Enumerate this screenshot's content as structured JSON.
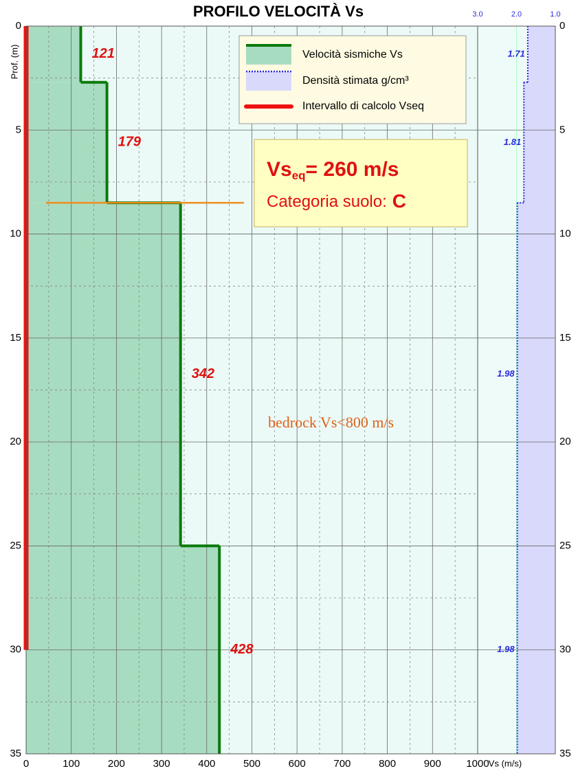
{
  "chart_data": {
    "type": "step-profile",
    "title": "PROFILO VELOCITÀ Vs",
    "y_label": "Prof. (m)",
    "x_label": "Vs (m/s)",
    "depths": [
      0,
      2.7,
      8.5,
      25,
      35
    ],
    "series": [
      {
        "name": "Velocità sismiche Vs",
        "color": "#0b7a0b",
        "fill": "#a8dcc0",
        "values": [
          121,
          179,
          342,
          428
        ]
      },
      {
        "name": "Densità stimata g/cm³",
        "color": "#2a2ae0",
        "fill": "#d9d9fb",
        "axis": "x2",
        "values": [
          1.71,
          1.81,
          1.98,
          1.98
        ]
      }
    ],
    "interval": {
      "name": "Intervallo di calcolo Vseq",
      "color": "#ee1111",
      "range": [
        0,
        30
      ]
    },
    "xlim": [
      0,
      1000
    ],
    "xticks": [
      0,
      100,
      200,
      300,
      400,
      500,
      600,
      700,
      800,
      900,
      1000
    ],
    "x2lim": [
      3.0,
      1.0
    ],
    "x2ticks": [
      {
        "value": 3,
        "label": "3.0"
      },
      {
        "value": 2,
        "label": "2.0"
      },
      {
        "value": 1,
        "label": "1.0"
      }
    ],
    "ylim": [
      0,
      35
    ],
    "yticks": [
      0,
      5,
      10,
      15,
      20,
      25,
      30,
      35
    ],
    "grid": true,
    "result": {
      "symbol": "Vs",
      "subscript": "eq",
      "text": "= 260 m/s",
      "category_label": "Categoria suolo:",
      "category": "C"
    },
    "bedrock_depth": 8.5,
    "annotation": "bedrock Vs<800 m/s"
  }
}
